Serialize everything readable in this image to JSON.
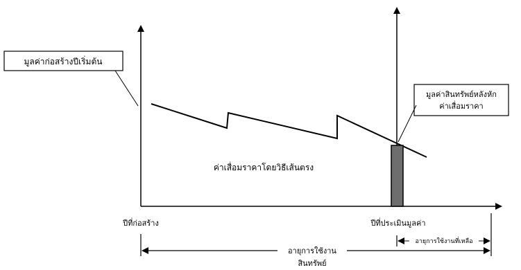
{
  "labels": {
    "initial_cost": "มูลค่าก่อสร้างปีเริ่มต้น",
    "asset_value_line1": "มูลค่าสินทรัพย์หลังหัก",
    "asset_value_line2": "ค่าเสื่อมราคา",
    "straight_line_depreciation": "ค่าเสื่อมราคาโดยวิธีเส้นตรง",
    "construction_year": "ปีที่ก่อสร้าง",
    "appraisal_year": "ปีที่ประเมินมูลค่า",
    "useful_life_line1": "อายุการใช้งาน",
    "useful_life_line2": "สินทรัพย์",
    "remaining_life": "อายุการใช้งานที่เหลือ"
  }
}
